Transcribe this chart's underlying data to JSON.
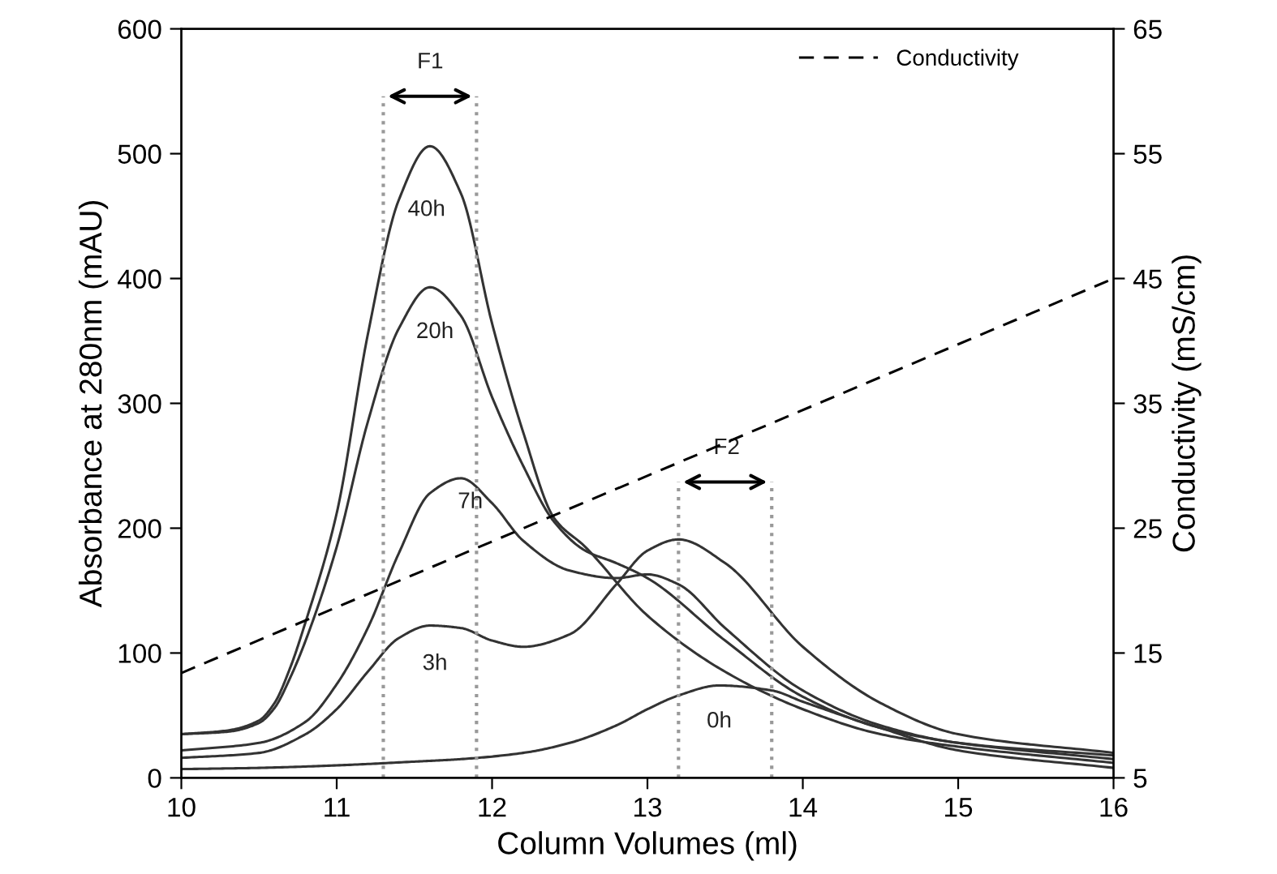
{
  "chart_data": {
    "type": "line",
    "xlabel": "Column Volumes (ml)",
    "ylabel": "Absorbance at 280nm (mAU)",
    "y2label": "Conductivity (mS/cm)",
    "xlim": [
      10,
      16
    ],
    "xticks": [
      10,
      11,
      12,
      13,
      14,
      15,
      16
    ],
    "ylim": [
      0,
      600
    ],
    "yticks": [
      0,
      100,
      200,
      300,
      400,
      500,
      600
    ],
    "y2lim": [
      5,
      65
    ],
    "y2ticks": [
      5,
      15,
      25,
      35,
      45,
      55,
      65
    ],
    "grid": false,
    "legend": "top right",
    "marker": "none",
    "series": [
      {
        "color": "#333333",
        "x": [
          10,
          10.3,
          10.5,
          10.6,
          10.7,
          10.8,
          11,
          11.2,
          11.4,
          11.6,
          11.8,
          12,
          12.2,
          12.4,
          12.6,
          13,
          13.5,
          14,
          14.5,
          15,
          16
        ],
        "values": [
          35,
          38,
          46,
          60,
          88,
          125,
          212,
          355,
          463,
          506,
          468,
          364,
          277,
          208,
          185,
          130,
          85,
          55,
          35,
          25,
          12
        ]
      },
      {
        "color": "#333333",
        "x": [
          10,
          10.3,
          10.5,
          10.6,
          10.7,
          10.8,
          11,
          11.2,
          11.4,
          11.6,
          11.8,
          12,
          12.2,
          12.4,
          12.6,
          12.8,
          13,
          13.5,
          14,
          14.5,
          15,
          16
        ],
        "values": [
          35,
          37,
          44,
          56,
          80,
          110,
          185,
          285,
          360,
          393,
          370,
          305,
          250,
          205,
          182,
          172,
          160,
          110,
          65,
          40,
          28,
          15
        ]
      },
      {
        "color": "#333333",
        "x": [
          10,
          10.5,
          10.8,
          11,
          11.2,
          11.4,
          11.6,
          11.8,
          12,
          12.2,
          12.5,
          12.8,
          13,
          13.2,
          13.5,
          14,
          14.5,
          15,
          16
        ],
        "values": [
          22,
          28,
          45,
          75,
          120,
          180,
          228,
          240,
          220,
          190,
          166,
          160,
          163,
          155,
          120,
          70,
          42,
          28,
          18
        ]
      },
      {
        "color": "#333333",
        "x": [
          10,
          10.5,
          10.8,
          11,
          11.2,
          11.4,
          11.6,
          11.8,
          12,
          12.2,
          12.5,
          12.8,
          13,
          13.2,
          13.5,
          14,
          14.5,
          15,
          16
        ],
        "values": [
          16,
          20,
          35,
          55,
          85,
          112,
          122,
          120,
          110,
          105,
          115,
          155,
          182,
          191,
          172,
          105,
          60,
          35,
          20
        ]
      },
      {
        "color": "#333333",
        "x": [
          10,
          10.5,
          11,
          11.5,
          11.8,
          12.2,
          12.5,
          12.8,
          13,
          13.2,
          13.46,
          13.8,
          14,
          14.5,
          15,
          16
        ],
        "values": [
          7,
          8,
          10,
          13,
          15,
          20,
          28,
          42,
          55,
          66,
          74,
          70,
          61,
          40,
          22,
          8
        ]
      },
      {
        "name": "Conductivity",
        "color": "#000000",
        "axis": "y2",
        "line_style": "dashed",
        "x": [
          10,
          16
        ],
        "values": [
          13.4,
          45
        ]
      }
    ],
    "ref_lines": [
      {
        "axis": "x",
        "value": 11.3,
        "color": "#999999",
        "line_style": "dotted"
      },
      {
        "axis": "x",
        "value": 11.9,
        "color": "#999999",
        "line_style": "dotted"
      },
      {
        "axis": "x",
        "value": 13.2,
        "color": "#999999",
        "line_style": "dotted"
      },
      {
        "axis": "x",
        "value": 13.8,
        "color": "#999999",
        "line_style": "dotted"
      }
    ],
    "annotations": [
      "40h",
      "20h",
      "7h",
      "3h",
      "0h",
      "F1",
      "F2"
    ]
  }
}
